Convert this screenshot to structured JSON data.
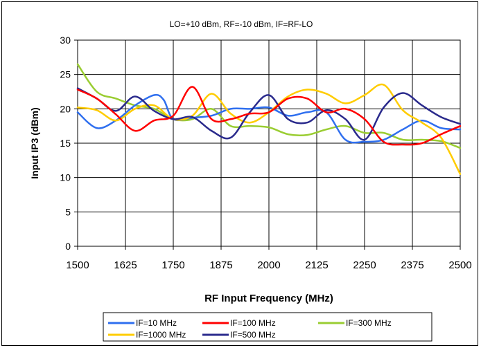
{
  "chart_data": {
    "type": "line",
    "title": "LO=+10 dBm, RF=-10 dBm, IF=RF-LO",
    "xlabel": "RF Input Frequency (MHz)",
    "ylabel": "Input IP3 (dBm)",
    "xlim": [
      1500,
      2500
    ],
    "ylim": [
      0,
      30
    ],
    "x_ticks": [
      1500,
      1625,
      1750,
      1875,
      2000,
      2125,
      2250,
      2375,
      2500
    ],
    "y_ticks": [
      0,
      5,
      10,
      15,
      20,
      25,
      30
    ],
    "x_tick_labels": [
      "1500",
      "1625",
      "1750",
      "1875",
      "2000",
      "2125",
      "2250",
      "2375",
      "2500"
    ],
    "y_tick_labels": [
      "0",
      "5",
      "10",
      "15",
      "20",
      "25",
      "30"
    ],
    "grid": true,
    "legend_position": "bottom",
    "series": [
      {
        "name": "IF=10 MHz",
        "color": "#2f6fef",
        "x": [
          1500,
          1550,
          1600,
          1650,
          1700,
          1725,
          1750,
          1800,
          1850,
          1900,
          1950,
          2000,
          2050,
          2100,
          2150,
          2200,
          2250,
          2300,
          2350,
          2400,
          2450,
          2500
        ],
        "y": [
          19.5,
          17.2,
          18.3,
          20.5,
          22.0,
          21.3,
          18.5,
          18.7,
          19.0,
          20.0,
          20.0,
          20.2,
          19.0,
          19.5,
          19.5,
          15.5,
          15.2,
          15.5,
          17.0,
          18.3,
          17.2,
          17.0
        ]
      },
      {
        "name": "IF=100 MHz",
        "color": "#ff0000",
        "x": [
          1500,
          1550,
          1600,
          1650,
          1700,
          1750,
          1800,
          1850,
          1900,
          1950,
          2000,
          2050,
          2100,
          2150,
          2200,
          2250,
          2300,
          2350,
          2400,
          2450,
          2500
        ],
        "y": [
          22.8,
          21.5,
          19.2,
          16.8,
          18.3,
          19.0,
          23.2,
          18.5,
          18.5,
          19.3,
          19.5,
          21.5,
          21.5,
          19.5,
          20.0,
          18.5,
          15.2,
          14.8,
          15.0,
          16.3,
          17.5
        ]
      },
      {
        "name": "IF=300 MHz",
        "color": "#9acd32",
        "x": [
          1500,
          1550,
          1600,
          1650,
          1700,
          1750,
          1800,
          1850,
          1900,
          1950,
          2000,
          2050,
          2100,
          2150,
          2200,
          2250,
          2300,
          2350,
          2400,
          2450,
          2500
        ],
        "y": [
          26.5,
          22.5,
          21.5,
          20.5,
          20.0,
          18.5,
          18.5,
          20.0,
          17.5,
          17.5,
          17.3,
          16.3,
          16.2,
          17.0,
          17.5,
          16.5,
          16.5,
          15.5,
          15.5,
          15.3,
          14.3
        ]
      },
      {
        "name": "IF=1000 MHz",
        "color": "#ffcc00",
        "x": [
          1500,
          1550,
          1600,
          1650,
          1700,
          1750,
          1800,
          1850,
          1900,
          1950,
          2000,
          2050,
          2100,
          2150,
          2200,
          2250,
          2300,
          2350,
          2400,
          2450,
          2500
        ],
        "y": [
          20.2,
          19.8,
          18.3,
          20.0,
          20.5,
          18.5,
          19.0,
          22.2,
          19.3,
          18.0,
          19.5,
          21.8,
          22.8,
          22.2,
          20.8,
          22.0,
          23.5,
          19.8,
          18.0,
          15.8,
          10.5
        ]
      },
      {
        "name": "IF=500 MHz",
        "color": "#2a2a8c",
        "x": [
          1500,
          1550,
          1600,
          1650,
          1700,
          1750,
          1800,
          1850,
          1900,
          1950,
          2000,
          2050,
          2100,
          2150,
          2200,
          2250,
          2300,
          2350,
          2400,
          2450,
          2500
        ],
        "y": [
          23.0,
          21.5,
          19.7,
          21.8,
          19.7,
          18.5,
          18.8,
          16.8,
          15.8,
          19.5,
          22.0,
          18.5,
          18.0,
          19.8,
          18.5,
          15.5,
          20.2,
          22.3,
          20.5,
          18.8,
          17.8
        ]
      }
    ]
  }
}
